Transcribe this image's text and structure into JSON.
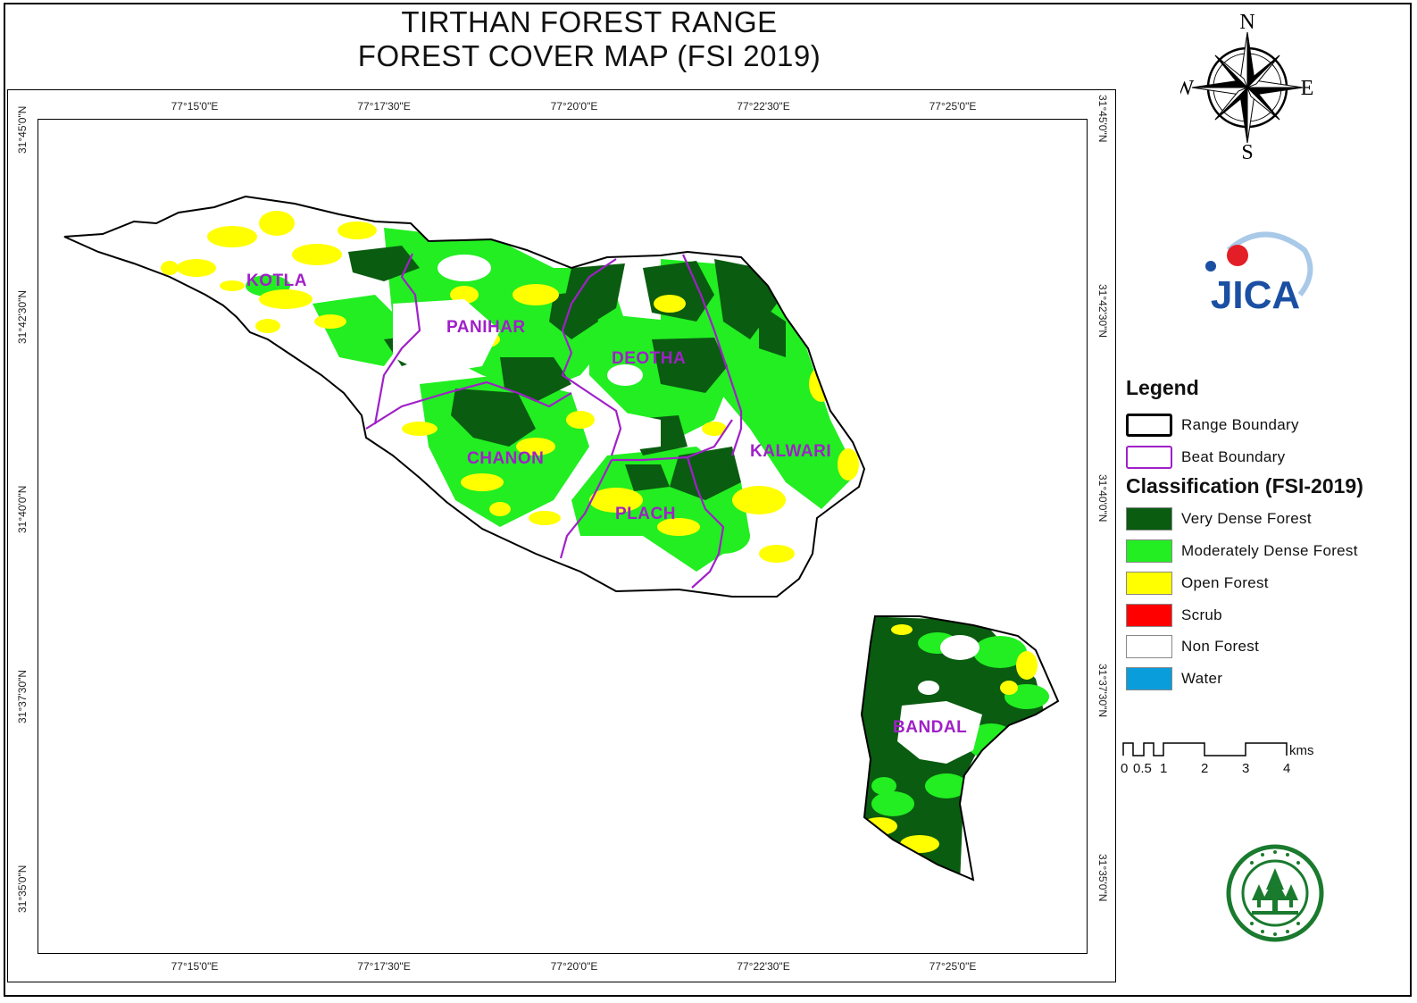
{
  "title": {
    "line1": "TIRTHAN FOREST RANGE",
    "line2": "FOREST COVER MAP (FSI 2019)"
  },
  "grid": {
    "longitudes": [
      "77°15'0\"E",
      "77°17'30\"E",
      "77°20'0\"E",
      "77°22'30\"E",
      "77°25'0\"E"
    ],
    "latitudes": [
      "31°45'0\"N",
      "31°42'30\"N",
      "31°40'0\"N",
      "31°37'30\"N",
      "31°35'0\"N"
    ]
  },
  "compass": {
    "n": "N",
    "s": "S",
    "e": "E",
    "w": "W"
  },
  "logo": {
    "name": "jica-logo",
    "text": "JICA"
  },
  "beats": [
    {
      "name": "KOTLA"
    },
    {
      "name": "PANIHAR"
    },
    {
      "name": "DEOTHA"
    },
    {
      "name": "CHANON"
    },
    {
      "name": "KALWARI"
    },
    {
      "name": "PLACH"
    },
    {
      "name": "BANDAL"
    }
  ],
  "legend": {
    "title": "Legend",
    "boundaries": [
      {
        "label": "Range Boundary",
        "color": "#000000"
      },
      {
        "label": "Beat Boundary",
        "color": "#a020c8"
      }
    ],
    "classification_title": "Classification (FSI-2019)",
    "classes": [
      {
        "label": "Very Dense Forest",
        "color": "#0a5c10"
      },
      {
        "label": "Moderately Dense Forest",
        "color": "#22ee22"
      },
      {
        "label": "Open Forest",
        "color": "#ffff00"
      },
      {
        "label": "Scrub",
        "color": "#ff0000"
      },
      {
        "label": "Non Forest",
        "color": "#ffffff"
      },
      {
        "label": "Water",
        "color": "#0a9ddc"
      }
    ]
  },
  "scale": {
    "unit": "kms",
    "labels": [
      "0",
      "0.5",
      "1",
      "2",
      "3",
      "4"
    ]
  },
  "emblem": {
    "name": "forest-department-emblem"
  }
}
